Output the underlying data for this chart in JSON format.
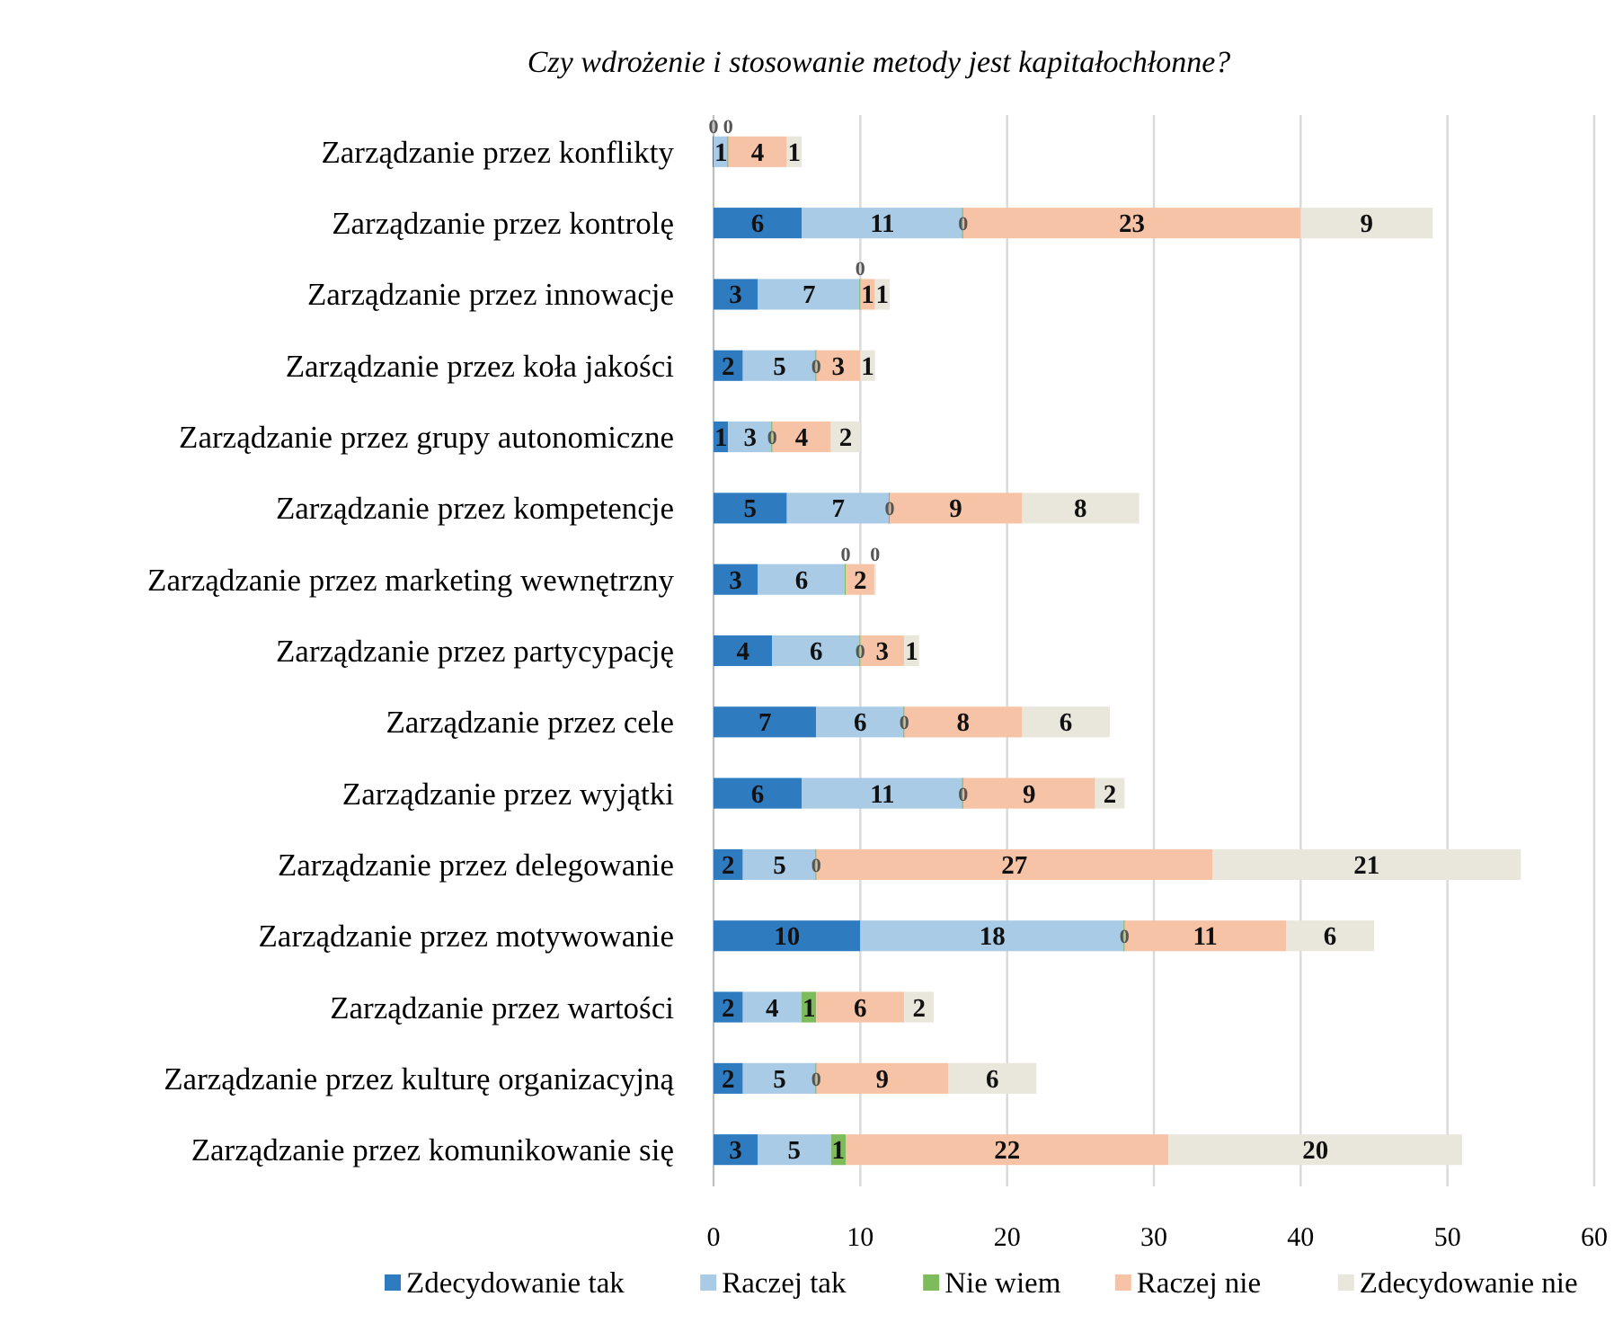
{
  "chart_data": {
    "type": "bar",
    "orientation": "horizontal",
    "stacked": true,
    "title": "Czy wdrożenie i stosowanie metody jest kapitałochłonne?",
    "categories": [
      "Zarządzanie przez konflikty",
      "Zarządzanie przez kontrolę",
      "Zarządzanie przez innowacje",
      "Zarządzanie przez koła jakości",
      "Zarządzanie przez grupy autonomiczne",
      "Zarządzanie przez kompetencje",
      "Zarządzanie przez marketing wewnętrzny",
      "Zarządzanie przez partycypację",
      "Zarządzanie przez cele",
      "Zarządzanie przez wyjątki",
      "Zarządzanie przez delegowanie",
      "Zarządzanie przez motywowanie",
      "Zarządzanie przez wartości",
      "Zarządzanie przez kulturę organizacyjną",
      "Zarządzanie przez komunikowanie się"
    ],
    "series": [
      {
        "name": "Zdecydowanie tak",
        "color": "#2e7bbf",
        "values": [
          0,
          6,
          3,
          2,
          1,
          5,
          3,
          4,
          7,
          6,
          2,
          10,
          2,
          2,
          3
        ]
      },
      {
        "name": "Raczej tak",
        "color": "#a9cbe6",
        "values": [
          1,
          11,
          7,
          5,
          3,
          7,
          6,
          6,
          6,
          11,
          5,
          18,
          4,
          5,
          5
        ]
      },
      {
        "name": "Nie wiem",
        "color": "#7dbb5b",
        "values": [
          0,
          0,
          0,
          0,
          0,
          0,
          0,
          0,
          0,
          0,
          0,
          0,
          1,
          0,
          1
        ]
      },
      {
        "name": "Raczej nie",
        "color": "#f7c3a6",
        "values": [
          4,
          23,
          1,
          3,
          4,
          9,
          2,
          3,
          8,
          9,
          27,
          11,
          6,
          9,
          22
        ]
      },
      {
        "name": "Zdecydowanie nie",
        "color": "#e9e6dc",
        "values": [
          1,
          9,
          1,
          1,
          2,
          8,
          0,
          1,
          6,
          2,
          21,
          6,
          2,
          6,
          20
        ]
      }
    ],
    "xlim": [
      0,
      60
    ],
    "xticks": [
      0,
      10,
      20,
      30,
      40,
      50,
      60
    ],
    "grid": "x",
    "legend": "bottom",
    "data_labels": true
  }
}
